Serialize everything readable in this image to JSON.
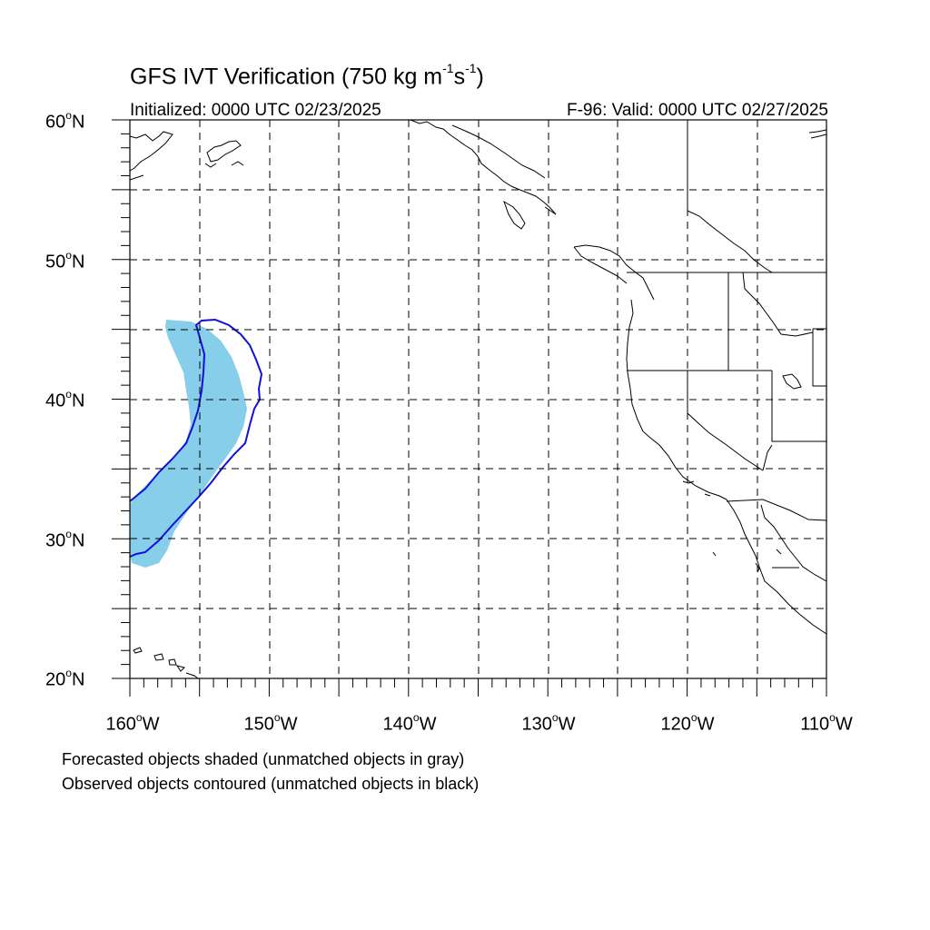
{
  "title": {
    "prefix": "GFS IVT Verification (750 kg m",
    "exp1": "-1",
    "mid": "s",
    "exp2": "-1",
    "suffix": ")"
  },
  "initialized": "Initialized: 0000 UTC 02/23/2025",
  "valid": "F-96: Valid: 0000 UTC 02/27/2025",
  "lat_labels": [
    {
      "deg": "60",
      "hemi": "N"
    },
    {
      "deg": "50",
      "hemi": "N"
    },
    {
      "deg": "40",
      "hemi": "N"
    },
    {
      "deg": "30",
      "hemi": "N"
    },
    {
      "deg": "20",
      "hemi": "N"
    }
  ],
  "lon_labels": [
    {
      "deg": "160",
      "hemi": "W"
    },
    {
      "deg": "150",
      "hemi": "W"
    },
    {
      "deg": "140",
      "hemi": "W"
    },
    {
      "deg": "130",
      "hemi": "W"
    },
    {
      "deg": "120",
      "hemi": "W"
    },
    {
      "deg": "110",
      "hemi": "W"
    }
  ],
  "degree_symbol": "o",
  "notes": {
    "forecast": "Forecasted objects shaded (unmatched objects in gray)",
    "observed": "Observed objects contoured (unmatched objects in black)"
  },
  "colors": {
    "forecast_fill": "#87ceeb",
    "observed_contour": "#1010d8",
    "coastline": "#000000",
    "grid": "#000000"
  },
  "map": {
    "lat_range": [
      20,
      60
    ],
    "lon_range": [
      -160,
      -110
    ],
    "grid_interval_deg": 5,
    "grid_style": "dashed"
  }
}
